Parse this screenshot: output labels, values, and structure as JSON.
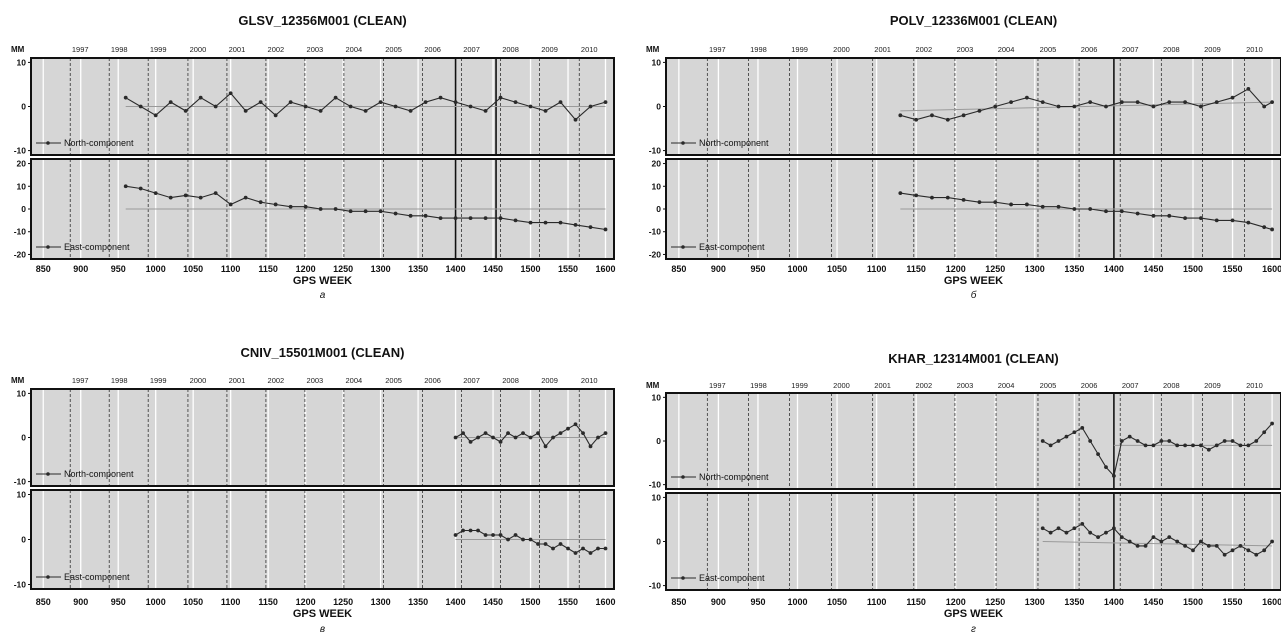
{
  "figure": {
    "background": "#ffffff",
    "panel_fill": "#d6d6d6",
    "point_color": "#2a2a2a",
    "trend_color": "#9a9a9a",
    "frame_color": "#111111"
  },
  "chart_data": [
    {
      "type": "scatter",
      "title": "GLSV_12356M001 (CLEAN)",
      "caption": "а",
      "unit": "MM",
      "xlabel": "GPS WEEK",
      "xlim": [
        835,
        1610
      ],
      "xticks": [
        850,
        900,
        950,
        1000,
        1050,
        1100,
        1150,
        1200,
        1250,
        1300,
        1350,
        1400,
        1450,
        1500,
        1550,
        1600
      ],
      "years": [
        "1997",
        "1998",
        "1999",
        "2000",
        "2001",
        "2002",
        "2003",
        "2004",
        "2005",
        "2006",
        "2007",
        "2008",
        "2009",
        "2010"
      ],
      "year_weeks": [
        886,
        938,
        990,
        1043,
        1095,
        1147,
        1199,
        1251,
        1304,
        1356,
        1408,
        1460,
        1512,
        1565
      ],
      "breaks": [
        1400,
        1454
      ],
      "grid": true,
      "series": [
        {
          "name": "North-component",
          "ylim": [
            -11,
            11
          ],
          "yticks": [
            10,
            0,
            -10
          ],
          "x": [
            960,
            980,
            1000,
            1020,
            1040,
            1060,
            1080,
            1100,
            1120,
            1140,
            1160,
            1180,
            1200,
            1220,
            1240,
            1260,
            1280,
            1300,
            1320,
            1340,
            1360,
            1380,
            1400,
            1420,
            1440,
            1460,
            1480,
            1500,
            1520,
            1540,
            1560,
            1580,
            1600
          ],
          "y": [
            2,
            0,
            -2,
            1,
            -1,
            2,
            0,
            3,
            -1,
            1,
            -2,
            1,
            0,
            -1,
            2,
            0,
            -1,
            1,
            0,
            -1,
            1,
            2,
            1,
            0,
            -1,
            2,
            1,
            0,
            -1,
            1,
            -3,
            0,
            1
          ],
          "trend": [
            [
              960,
              0
            ],
            [
              1600,
              0
            ]
          ]
        },
        {
          "name": "East-component",
          "ylim": [
            -22,
            22
          ],
          "yticks": [
            20,
            10,
            0,
            -10,
            -20
          ],
          "x": [
            960,
            980,
            1000,
            1020,
            1040,
            1060,
            1080,
            1100,
            1120,
            1140,
            1160,
            1180,
            1200,
            1220,
            1240,
            1260,
            1280,
            1300,
            1320,
            1340,
            1360,
            1380,
            1400,
            1420,
            1440,
            1460,
            1480,
            1500,
            1520,
            1540,
            1560,
            1580,
            1600
          ],
          "y": [
            10,
            9,
            7,
            5,
            6,
            5,
            7,
            2,
            5,
            3,
            2,
            1,
            1,
            0,
            0,
            -1,
            -1,
            -1,
            -2,
            -3,
            -3,
            -4,
            -4,
            -4,
            -4,
            -4,
            -5,
            -6,
            -6,
            -6,
            -7,
            -8,
            -9
          ],
          "trend": [
            [
              960,
              0
            ],
            [
              1600,
              0
            ]
          ]
        }
      ]
    },
    {
      "type": "scatter",
      "title": "POLV_12336M001 (CLEAN)",
      "caption": "б",
      "unit": "MM",
      "xlabel": "GPS WEEK",
      "xlim": [
        835,
        1610
      ],
      "xticks": [
        850,
        900,
        950,
        1000,
        1050,
        1100,
        1150,
        1200,
        1250,
        1300,
        1350,
        1400,
        1450,
        1500,
        1550,
        1600
      ],
      "years": [
        "1997",
        "1998",
        "1999",
        "2000",
        "2001",
        "2002",
        "2003",
        "2004",
        "2005",
        "2006",
        "2007",
        "2008",
        "2009",
        "2010"
      ],
      "year_weeks": [
        886,
        938,
        990,
        1043,
        1095,
        1147,
        1199,
        1251,
        1304,
        1356,
        1408,
        1460,
        1512,
        1565
      ],
      "breaks": [
        1400
      ],
      "grid": true,
      "series": [
        {
          "name": "North-component",
          "ylim": [
            -11,
            11
          ],
          "yticks": [
            10,
            0,
            -10
          ],
          "x": [
            1130,
            1150,
            1170,
            1190,
            1210,
            1230,
            1250,
            1270,
            1290,
            1310,
            1330,
            1350,
            1370,
            1390,
            1410,
            1430,
            1450,
            1470,
            1490,
            1510,
            1530,
            1550,
            1570,
            1590,
            1600
          ],
          "y": [
            -2,
            -3,
            -2,
            -3,
            -2,
            -1,
            0,
            1,
            2,
            1,
            0,
            0,
            1,
            0,
            1,
            1,
            0,
            1,
            1,
            0,
            1,
            2,
            4,
            0,
            1
          ],
          "trend": [
            [
              1130,
              -1
            ],
            [
              1600,
              1
            ]
          ]
        },
        {
          "name": "East-component",
          "ylim": [
            -22,
            22
          ],
          "yticks": [
            20,
            10,
            0,
            -10,
            -20
          ],
          "x": [
            1130,
            1150,
            1170,
            1190,
            1210,
            1230,
            1250,
            1270,
            1290,
            1310,
            1330,
            1350,
            1370,
            1390,
            1410,
            1430,
            1450,
            1470,
            1490,
            1510,
            1530,
            1550,
            1570,
            1590,
            1600
          ],
          "y": [
            7,
            6,
            5,
            5,
            4,
            3,
            3,
            2,
            2,
            1,
            1,
            0,
            0,
            -1,
            -1,
            -2,
            -3,
            -3,
            -4,
            -4,
            -5,
            -5,
            -6,
            -8,
            -9
          ],
          "trend": [
            [
              1130,
              0
            ],
            [
              1600,
              0
            ]
          ]
        }
      ]
    },
    {
      "type": "scatter",
      "title": "CNIV_15501M001 (CLEAN)",
      "caption": "в",
      "unit": "MM",
      "xlabel": "GPS WEEK",
      "xlim": [
        835,
        1610
      ],
      "xticks": [
        850,
        900,
        950,
        1000,
        1050,
        1100,
        1150,
        1200,
        1250,
        1300,
        1350,
        1400,
        1450,
        1500,
        1550,
        1600
      ],
      "years": [
        "1997",
        "1998",
        "1999",
        "2000",
        "2001",
        "2002",
        "2003",
        "2004",
        "2005",
        "2006",
        "2007",
        "2008",
        "2009",
        "2010"
      ],
      "year_weeks": [
        886,
        938,
        990,
        1043,
        1095,
        1147,
        1199,
        1251,
        1304,
        1356,
        1408,
        1460,
        1512,
        1565
      ],
      "breaks": [],
      "grid": true,
      "series": [
        {
          "name": "North-component",
          "ylim": [
            -11,
            11
          ],
          "yticks": [
            10,
            0,
            -10
          ],
          "x": [
            1400,
            1410,
            1420,
            1430,
            1440,
            1450,
            1460,
            1470,
            1480,
            1490,
            1500,
            1510,
            1520,
            1530,
            1540,
            1550,
            1560,
            1570,
            1580,
            1590,
            1600
          ],
          "y": [
            0,
            1,
            -1,
            0,
            1,
            0,
            -1,
            1,
            0,
            1,
            0,
            1,
            -2,
            0,
            1,
            2,
            3,
            1,
            -2,
            0,
            1
          ],
          "trend": [
            [
              1400,
              0
            ],
            [
              1600,
              0
            ]
          ]
        },
        {
          "name": "East-component",
          "ylim": [
            -11,
            11
          ],
          "yticks": [
            10,
            0,
            -10
          ],
          "x": [
            1400,
            1410,
            1420,
            1430,
            1440,
            1450,
            1460,
            1470,
            1480,
            1490,
            1500,
            1510,
            1520,
            1530,
            1540,
            1550,
            1560,
            1570,
            1580,
            1590,
            1600
          ],
          "y": [
            1,
            2,
            2,
            2,
            1,
            1,
            1,
            0,
            1,
            0,
            0,
            -1,
            -1,
            -2,
            -1,
            -2,
            -3,
            -2,
            -3,
            -2,
            -2
          ],
          "trend": [
            [
              1400,
              0
            ],
            [
              1600,
              0
            ]
          ]
        }
      ]
    },
    {
      "type": "scatter",
      "title": "KHAR_12314M001 (CLEAN)",
      "caption": "г",
      "unit": "MM",
      "xlabel": "GPS WEEK",
      "xlim": [
        835,
        1610
      ],
      "xticks": [
        850,
        900,
        950,
        1000,
        1050,
        1100,
        1150,
        1200,
        1250,
        1300,
        1350,
        1400,
        1450,
        1500,
        1550,
        1600
      ],
      "years": [
        "1997",
        "1998",
        "1999",
        "2000",
        "2001",
        "2002",
        "2003",
        "2004",
        "2005",
        "2006",
        "2007",
        "2008",
        "2009",
        "2010"
      ],
      "year_weeks": [
        886,
        938,
        990,
        1043,
        1095,
        1147,
        1199,
        1251,
        1304,
        1356,
        1408,
        1460,
        1512,
        1565
      ],
      "breaks": [
        1400
      ],
      "grid": true,
      "series": [
        {
          "name": "North-component",
          "ylim": [
            -11,
            11
          ],
          "yticks": [
            10,
            0,
            -10
          ],
          "x": [
            1310,
            1320,
            1330,
            1340,
            1350,
            1360,
            1370,
            1380,
            1390,
            1400,
            1410,
            1420,
            1430,
            1440,
            1450,
            1460,
            1470,
            1480,
            1490,
            1500,
            1510,
            1520,
            1530,
            1540,
            1550,
            1560,
            1570,
            1580,
            1590,
            1600
          ],
          "y": [
            0,
            -1,
            0,
            1,
            2,
            3,
            0,
            -3,
            -6,
            -8,
            0,
            1,
            0,
            -1,
            -1,
            0,
            0,
            -1,
            -1,
            -1,
            -1,
            -2,
            -1,
            0,
            0,
            -1,
            -1,
            0,
            2,
            4
          ],
          "trend": [
            [
              1400,
              -1
            ],
            [
              1600,
              -1
            ]
          ]
        },
        {
          "name": "East-component",
          "ylim": [
            -11,
            11
          ],
          "yticks": [
            10,
            0,
            -10
          ],
          "x": [
            1310,
            1320,
            1330,
            1340,
            1350,
            1360,
            1370,
            1380,
            1390,
            1400,
            1410,
            1420,
            1430,
            1440,
            1450,
            1460,
            1470,
            1480,
            1490,
            1500,
            1510,
            1520,
            1530,
            1540,
            1550,
            1560,
            1570,
            1580,
            1590,
            1600
          ],
          "y": [
            3,
            2,
            3,
            2,
            3,
            4,
            2,
            1,
            2,
            3,
            1,
            0,
            -1,
            -1,
            1,
            0,
            1,
            0,
            -1,
            -2,
            0,
            -1,
            -1,
            -3,
            -2,
            -1,
            -2,
            -3,
            -2,
            0
          ],
          "trend": [
            [
              1310,
              0
            ],
            [
              1600,
              -1
            ]
          ]
        }
      ]
    }
  ]
}
